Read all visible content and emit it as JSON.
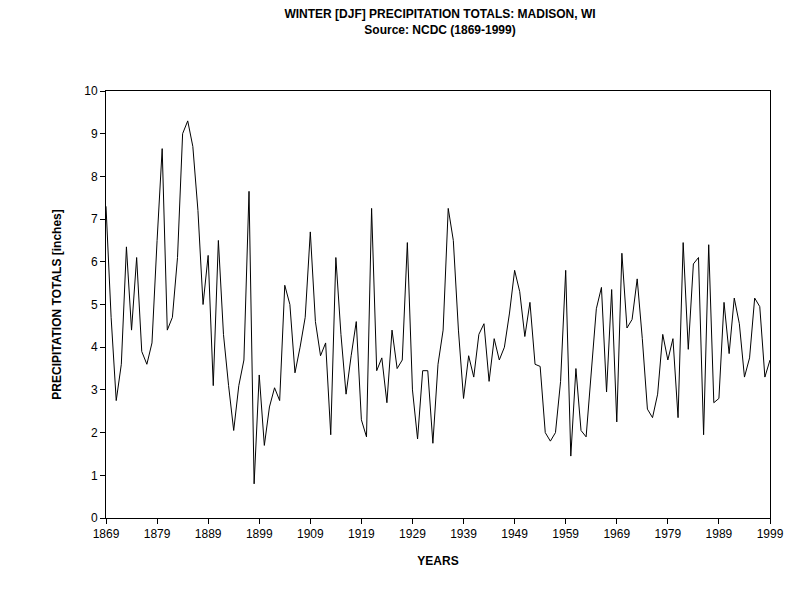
{
  "chart_data": {
    "type": "line",
    "title": "WINTER [DJF] PRECIPITATION TOTALS: MADISON, WI",
    "subtitle": "Source: NCDC (1869-1999)",
    "x_label": "YEARS",
    "y_label": "PRECIPITATION TOTALS [inches]",
    "x": [
      1869,
      1870,
      1871,
      1872,
      1873,
      1874,
      1875,
      1876,
      1877,
      1878,
      1879,
      1880,
      1881,
      1882,
      1883,
      1884,
      1885,
      1886,
      1887,
      1888,
      1889,
      1890,
      1891,
      1892,
      1893,
      1894,
      1895,
      1896,
      1897,
      1898,
      1899,
      1900,
      1901,
      1902,
      1903,
      1904,
      1905,
      1906,
      1907,
      1908,
      1909,
      1910,
      1911,
      1912,
      1913,
      1914,
      1915,
      1916,
      1917,
      1918,
      1919,
      1920,
      1921,
      1922,
      1923,
      1924,
      1925,
      1926,
      1927,
      1928,
      1929,
      1930,
      1931,
      1932,
      1933,
      1934,
      1935,
      1936,
      1937,
      1938,
      1939,
      1940,
      1941,
      1942,
      1943,
      1944,
      1945,
      1946,
      1947,
      1948,
      1949,
      1950,
      1951,
      1952,
      1953,
      1954,
      1955,
      1956,
      1957,
      1958,
      1959,
      1960,
      1961,
      1962,
      1963,
      1964,
      1965,
      1966,
      1967,
      1968,
      1969,
      1970,
      1971,
      1972,
      1973,
      1974,
      1975,
      1976,
      1977,
      1978,
      1979,
      1980,
      1981,
      1982,
      1983,
      1984,
      1985,
      1986,
      1987,
      1988,
      1989,
      1990,
      1991,
      1992,
      1993,
      1994,
      1995,
      1996,
      1997,
      1998,
      1999
    ],
    "values": [
      7.3,
      4.7,
      2.75,
      3.6,
      6.35,
      4.4,
      6.1,
      3.9,
      3.6,
      4.1,
      6.5,
      8.65,
      4.4,
      4.7,
      6.1,
      9.0,
      9.3,
      8.7,
      7.2,
      5.0,
      6.15,
      3.1,
      6.5,
      4.3,
      3.1,
      2.05,
      3.1,
      3.7,
      7.65,
      0.8,
      3.35,
      1.7,
      2.6,
      3.05,
      2.75,
      5.45,
      5.0,
      3.4,
      4.0,
      4.7,
      6.7,
      4.6,
      3.8,
      4.1,
      1.95,
      6.1,
      4.3,
      2.9,
      3.8,
      4.6,
      2.3,
      1.9,
      7.25,
      3.45,
      3.75,
      2.7,
      4.4,
      3.5,
      3.7,
      6.45,
      3.0,
      1.85,
      3.45,
      3.45,
      1.75,
      3.6,
      4.4,
      7.25,
      6.5,
      4.4,
      2.8,
      3.8,
      3.3,
      4.3,
      4.55,
      3.2,
      4.2,
      3.7,
      4.0,
      4.8,
      5.8,
      5.3,
      4.25,
      5.05,
      3.6,
      3.55,
      2.0,
      1.8,
      2.0,
      3.2,
      5.8,
      1.45,
      3.5,
      2.05,
      1.9,
      3.3,
      4.9,
      5.4,
      2.95,
      5.35,
      2.25,
      6.2,
      4.45,
      4.65,
      5.6,
      4.2,
      2.55,
      2.35,
      2.9,
      4.3,
      3.7,
      4.2,
      2.35,
      6.45,
      3.95,
      5.95,
      6.1,
      1.95,
      6.4,
      2.7,
      2.8,
      5.05,
      3.85,
      5.15,
      4.55,
      3.3,
      3.75,
      5.15,
      4.95,
      3.3,
      3.7
    ],
    "color": "#000000",
    "xlim": [
      1869,
      1999
    ],
    "xticks": [
      1869,
      1879,
      1889,
      1899,
      1909,
      1919,
      1929,
      1939,
      1949,
      1959,
      1969,
      1979,
      1989,
      1999
    ],
    "ylim": [
      0,
      10
    ],
    "yticks": [
      0,
      1,
      2,
      3,
      4,
      5,
      6,
      7,
      8,
      9,
      10
    ],
    "grid": false
  }
}
